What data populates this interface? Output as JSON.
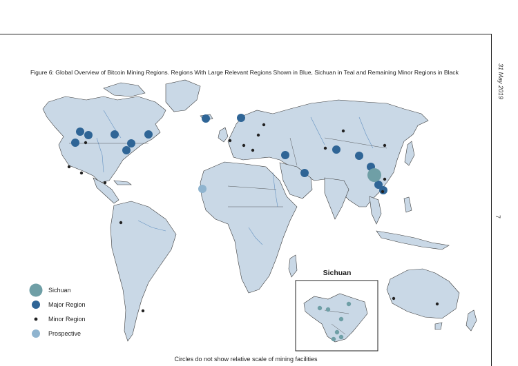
{
  "figure": {
    "caption": "Figure 6: Global Overview of Bitcoin Mining Regions. Regions With Large Relevant Regions Shown in Blue, Sichuan in Teal and Remaining Minor Regions in Black",
    "footnote": "Circles do not show relative scale of mining facilities",
    "side_date": "31 May 2019",
    "page_number": "7"
  },
  "legend": {
    "items": [
      {
        "label": "Sichuan",
        "color": "#6f9fa6"
      },
      {
        "label": "Major Region",
        "color": "#2f6596"
      },
      {
        "label": "Minor Region",
        "color": "#222222"
      },
      {
        "label": "Prospective",
        "color": "#8fb4cf"
      }
    ]
  },
  "inset": {
    "title": "Sichuan"
  },
  "colors": {
    "land": "#c9d8e6",
    "sichuan": "#6f9fa6",
    "major": "#2f6596",
    "minor": "#222222",
    "prospective": "#8fb4cf"
  }
}
